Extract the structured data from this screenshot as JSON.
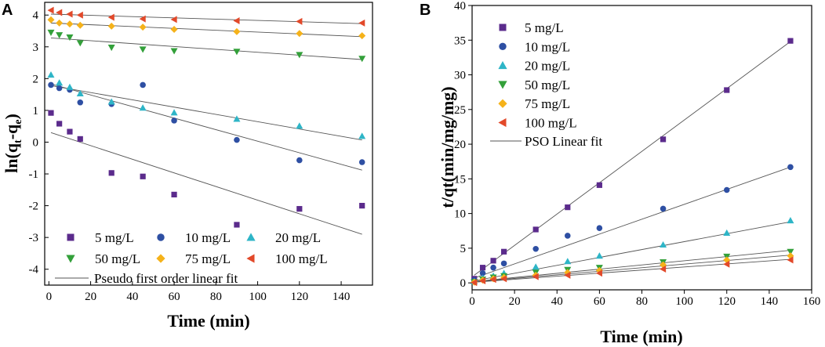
{
  "chart_data": [
    {
      "panel": "A",
      "type": "scatter",
      "xlabel": "Time (min)",
      "ylabel": "ln(qt-qe)",
      "ylabel_parts": {
        "base": "ln(q",
        "sub1": "t",
        "mid": "-q",
        "sub2": "e",
        "end": ")"
      },
      "xlim": [
        -2,
        155
      ],
      "ylim": [
        -4.5,
        4.4
      ],
      "xticks": [
        0,
        20,
        40,
        60,
        80,
        100,
        120,
        140
      ],
      "yticks": [
        -4,
        -3,
        -2,
        -1,
        0,
        1,
        2,
        3,
        4
      ],
      "legend_position": "bottom-left",
      "fit_label": "Pseudo first order linear fit",
      "series": [
        {
          "name": "5 mg/L",
          "marker": "square",
          "color": "#5b2b8c",
          "x": [
            1,
            5,
            10,
            15,
            30,
            45,
            60,
            90,
            120,
            150
          ],
          "y": [
            0.92,
            0.58,
            0.33,
            0.1,
            -0.97,
            -1.08,
            -1.65,
            -2.6,
            -2.1,
            -2.0
          ],
          "fit": [
            0.3,
            -2.9
          ]
        },
        {
          "name": "10 mg/L",
          "marker": "circle",
          "color": "#2e4fa3",
          "x": [
            1,
            5,
            10,
            15,
            30,
            45,
            60,
            90,
            120,
            150
          ],
          "y": [
            1.8,
            1.7,
            1.65,
            1.25,
            1.2,
            1.8,
            0.68,
            0.07,
            -0.57,
            -0.63
          ],
          "fit": [
            1.83,
            -0.88
          ]
        },
        {
          "name": "20 mg/L",
          "marker": "triangle-up",
          "color": "#2eb5c7",
          "x": [
            1,
            5,
            10,
            15,
            30,
            45,
            60,
            90,
            120,
            150
          ],
          "y": [
            2.12,
            1.87,
            1.73,
            1.53,
            1.27,
            1.08,
            0.93,
            0.73,
            0.51,
            0.19
          ],
          "fit": [
            1.78,
            0.07
          ]
        },
        {
          "name": "50 mg/L",
          "marker": "triangle-down",
          "color": "#33a03a",
          "x": [
            1,
            5,
            10,
            15,
            30,
            45,
            60,
            90,
            120,
            150
          ],
          "y": [
            3.45,
            3.37,
            3.3,
            3.12,
            2.98,
            2.92,
            2.87,
            2.85,
            2.75,
            2.63
          ],
          "fit": [
            3.28,
            2.6
          ]
        },
        {
          "name": "75 mg/L",
          "marker": "diamond",
          "color": "#f5b21a",
          "x": [
            1,
            5,
            10,
            15,
            30,
            45,
            60,
            90,
            120,
            150
          ],
          "y": [
            3.85,
            3.75,
            3.72,
            3.68,
            3.65,
            3.62,
            3.55,
            3.48,
            3.42,
            3.35
          ],
          "fit": [
            3.75,
            3.32
          ]
        },
        {
          "name": "100 mg/L",
          "marker": "triangle-left",
          "color": "#e2492a",
          "x": [
            1,
            5,
            10,
            15,
            30,
            45,
            60,
            90,
            120,
            150
          ],
          "y": [
            4.15,
            4.08,
            4.03,
            4.0,
            3.93,
            3.88,
            3.86,
            3.82,
            3.8,
            3.75
          ],
          "fit": [
            4.03,
            3.73
          ]
        }
      ]
    },
    {
      "panel": "B",
      "type": "scatter",
      "xlabel": "Time (min)",
      "ylabel": "t/qt(min/mg/mg)",
      "xlim": [
        0,
        160
      ],
      "ylim": [
        -1,
        40
      ],
      "xticks": [
        0,
        20,
        40,
        60,
        80,
        100,
        120,
        140,
        160
      ],
      "yticks": [
        0,
        5,
        10,
        15,
        20,
        25,
        30,
        35,
        40
      ],
      "legend_position": "top-left",
      "fit_label": "PSO Linear fit",
      "series": [
        {
          "name": "5 mg/L",
          "marker": "square",
          "color": "#5b2b8c",
          "x": [
            1,
            5,
            10,
            15,
            30,
            45,
            60,
            90,
            120,
            150
          ],
          "y": [
            0.6,
            2.2,
            3.2,
            4.5,
            7.7,
            10.9,
            14.1,
            20.7,
            27.8,
            34.9
          ],
          "fit": [
            1.1,
            34.8
          ]
        },
        {
          "name": "10 mg/L",
          "marker": "circle",
          "color": "#2e4fa3",
          "x": [
            1,
            5,
            10,
            15,
            30,
            45,
            60,
            90,
            120,
            150
          ],
          "y": [
            0.4,
            1.4,
            2.2,
            2.8,
            4.9,
            6.8,
            7.9,
            10.7,
            13.4,
            16.7
          ],
          "fit": [
            0.7,
            16.7
          ]
        },
        {
          "name": "20 mg/L",
          "marker": "triangle-up",
          "color": "#2eb5c7",
          "x": [
            1,
            5,
            10,
            15,
            30,
            45,
            60,
            90,
            120,
            150
          ],
          "y": [
            0.2,
            0.7,
            1.0,
            1.4,
            2.3,
            3.1,
            3.9,
            5.5,
            7.2,
            9.0
          ],
          "fit": [
            0.3,
            8.8
          ]
        },
        {
          "name": "50 mg/L",
          "marker": "triangle-down",
          "color": "#33a03a",
          "x": [
            1,
            5,
            10,
            15,
            30,
            45,
            60,
            90,
            120,
            150
          ],
          "y": [
            0.15,
            0.5,
            0.8,
            1.0,
            1.5,
            1.9,
            2.2,
            3.0,
            3.8,
            4.5
          ],
          "fit": [
            0.2,
            4.7
          ]
        },
        {
          "name": "75 mg/L",
          "marker": "diamond",
          "color": "#f5b21a",
          "x": [
            1,
            5,
            10,
            15,
            30,
            45,
            60,
            90,
            120,
            150
          ],
          "y": [
            0.1,
            0.4,
            0.6,
            0.8,
            1.1,
            1.5,
            1.8,
            2.6,
            3.3,
            3.9
          ],
          "fit": [
            0.15,
            4.0
          ]
        },
        {
          "name": "100 mg/L",
          "marker": "triangle-left",
          "color": "#e2492a",
          "x": [
            1,
            5,
            10,
            15,
            30,
            45,
            60,
            90,
            120,
            150
          ],
          "y": [
            0.05,
            0.3,
            0.5,
            0.6,
            0.9,
            1.1,
            1.4,
            2.0,
            2.7,
            3.3
          ],
          "fit": [
            0.1,
            3.4
          ]
        }
      ]
    }
  ]
}
